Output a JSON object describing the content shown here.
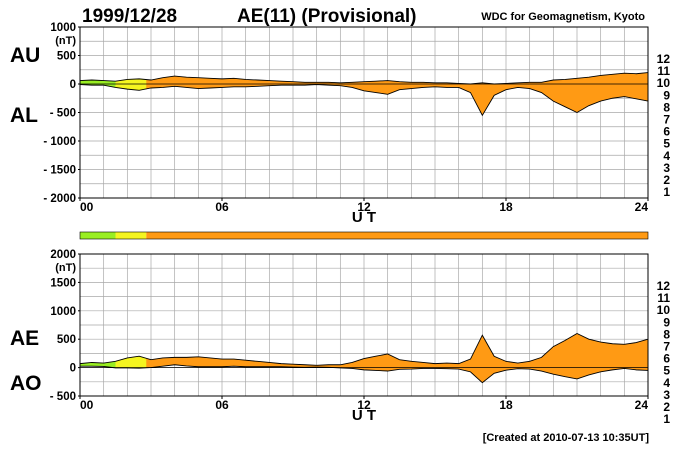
{
  "header": {
    "date": "1999/12/28",
    "title": "AE(11) (Provisional)",
    "source": "WDC for Geomagnetism, Kyoto"
  },
  "footer": {
    "created": "[Created at 2010-07-13 10:35UT]"
  },
  "activity_scale": {
    "levels": [
      {
        "label": "12",
        "color": "#ff1493"
      },
      {
        "label": "11",
        "color": "#e00000"
      },
      {
        "label": "10",
        "color": "#ff9a00"
      },
      {
        "label": "9",
        "color": "#ffd200"
      },
      {
        "label": "8",
        "color": "#ffff33"
      },
      {
        "label": "7",
        "color": "#00e0ff"
      },
      {
        "label": "6",
        "color": "#1e6bff"
      },
      {
        "label": "5",
        "color": "#0000cc"
      },
      {
        "label": "4",
        "color": "#cc00cc"
      },
      {
        "label": "3",
        "color": "#000000"
      },
      {
        "label": "2",
        "color": "#666666"
      },
      {
        "label": "1",
        "color": "#bbbbbb"
      }
    ]
  },
  "chart_data": [
    {
      "type": "area",
      "side_labels": {
        "upper": "AU",
        "lower": "AL"
      },
      "ylim": [
        -2000,
        1000
      ],
      "yticks": [
        "1000",
        "500",
        "0",
        "- 500",
        "- 1000",
        "- 1500",
        "- 2000"
      ],
      "yunit": "(nT)",
      "xlim": [
        0,
        24
      ],
      "xticks": [
        "00",
        "06",
        "12",
        "18",
        "24"
      ],
      "xlabel": "U T",
      "grid": true,
      "fill_color": "#ff9a14",
      "early_colors": [
        {
          "until_hour": 1.5,
          "color": "#99ee22"
        },
        {
          "until_hour": 2.8,
          "color": "#f5f520"
        }
      ],
      "upper_series": {
        "name": "AU",
        "x": [
          0,
          0.5,
          1,
          1.5,
          2,
          2.5,
          3,
          3.5,
          4,
          4.5,
          5,
          5.5,
          6,
          6.5,
          7,
          7.5,
          8,
          8.5,
          9,
          9.5,
          10,
          10.5,
          11,
          11.5,
          12,
          12.5,
          13,
          13.5,
          14,
          14.5,
          15,
          15.5,
          16,
          16.5,
          17,
          17.5,
          18,
          18.5,
          19,
          19.5,
          20,
          20.5,
          21,
          21.5,
          22,
          22.5,
          23,
          23.5,
          24
        ],
        "values": [
          60,
          70,
          60,
          50,
          80,
          90,
          70,
          110,
          140,
          120,
          110,
          100,
          90,
          100,
          80,
          70,
          60,
          50,
          40,
          30,
          30,
          30,
          20,
          30,
          40,
          50,
          60,
          40,
          30,
          30,
          20,
          20,
          10,
          0,
          20,
          0,
          10,
          20,
          30,
          30,
          70,
          80,
          100,
          120,
          150,
          170,
          190,
          180,
          200
        ]
      },
      "lower_series": {
        "name": "AL",
        "x": [
          0,
          0.5,
          1,
          1.5,
          2,
          2.5,
          3,
          3.5,
          4,
          4.5,
          5,
          5.5,
          6,
          6.5,
          7,
          7.5,
          8,
          8.5,
          9,
          9.5,
          10,
          10.5,
          11,
          11.5,
          12,
          12.5,
          13,
          13.5,
          14,
          14.5,
          15,
          15.5,
          16,
          16.5,
          17,
          17.5,
          18,
          18.5,
          19,
          19.5,
          20,
          20.5,
          21,
          21.5,
          22,
          22.5,
          23,
          23.5,
          24
        ],
        "values": [
          -10,
          -20,
          -20,
          -60,
          -90,
          -110,
          -70,
          -60,
          -40,
          -60,
          -80,
          -70,
          -60,
          -50,
          -50,
          -40,
          -30,
          -20,
          -20,
          -20,
          -10,
          -20,
          -30,
          -60,
          -120,
          -150,
          -180,
          -100,
          -80,
          -60,
          -50,
          -60,
          -60,
          -150,
          -550,
          -200,
          -100,
          -60,
          -80,
          -150,
          -300,
          -400,
          -500,
          -380,
          -300,
          -250,
          -220,
          -260,
          -300
        ]
      }
    },
    {
      "type": "area",
      "side_labels": {
        "upper": "AE",
        "lower": "AO"
      },
      "ylim": [
        -500,
        2000
      ],
      "yticks": [
        "2000",
        "1500",
        "1000",
        "500",
        "0",
        "- 500"
      ],
      "yunit": "(nT)",
      "xlim": [
        0,
        24
      ],
      "xticks": [
        "00",
        "06",
        "12",
        "18",
        "24"
      ],
      "xlabel": "U T",
      "grid": true,
      "fill_color": "#ff9a14",
      "early_colors": [
        {
          "until_hour": 1.5,
          "color": "#99ee22"
        },
        {
          "until_hour": 2.8,
          "color": "#f5f520"
        }
      ],
      "upper_series": {
        "name": "AE",
        "x": [
          0,
          0.5,
          1,
          1.5,
          2,
          2.5,
          3,
          3.5,
          4,
          4.5,
          5,
          5.5,
          6,
          6.5,
          7,
          7.5,
          8,
          8.5,
          9,
          9.5,
          10,
          10.5,
          11,
          11.5,
          12,
          12.5,
          13,
          13.5,
          14,
          14.5,
          15,
          15.5,
          16,
          16.5,
          17,
          17.5,
          18,
          18.5,
          19,
          19.5,
          20,
          20.5,
          21,
          21.5,
          22,
          22.5,
          23,
          23.5,
          24
        ],
        "values": [
          70,
          90,
          80,
          110,
          170,
          200,
          140,
          170,
          180,
          180,
          190,
          170,
          150,
          150,
          130,
          110,
          90,
          70,
          60,
          50,
          40,
          50,
          50,
          90,
          160,
          200,
          240,
          140,
          110,
          90,
          70,
          80,
          70,
          150,
          570,
          200,
          110,
          80,
          110,
          180,
          370,
          480,
          600,
          500,
          450,
          420,
          410,
          440,
          500
        ]
      },
      "lower_series": {
        "name": "AO",
        "x": [
          0,
          0.5,
          1,
          1.5,
          2,
          2.5,
          3,
          3.5,
          4,
          4.5,
          5,
          5.5,
          6,
          6.5,
          7,
          7.5,
          8,
          8.5,
          9,
          9.5,
          10,
          10.5,
          11,
          11.5,
          12,
          12.5,
          13,
          13.5,
          14,
          14.5,
          15,
          15.5,
          16,
          16.5,
          17,
          17.5,
          18,
          18.5,
          19,
          19.5,
          20,
          20.5,
          21,
          21.5,
          22,
          22.5,
          23,
          23.5,
          24
        ],
        "values": [
          25,
          25,
          20,
          -5,
          -5,
          -10,
          0,
          25,
          50,
          30,
          15,
          15,
          15,
          25,
          15,
          15,
          15,
          15,
          10,
          5,
          10,
          5,
          -5,
          -15,
          -40,
          -50,
          -60,
          -30,
          -25,
          -15,
          -15,
          -20,
          -25,
          -75,
          -265,
          -100,
          -45,
          -20,
          -25,
          -60,
          -115,
          -160,
          -200,
          -130,
          -75,
          -40,
          -15,
          -40,
          -50
        ]
      }
    }
  ]
}
